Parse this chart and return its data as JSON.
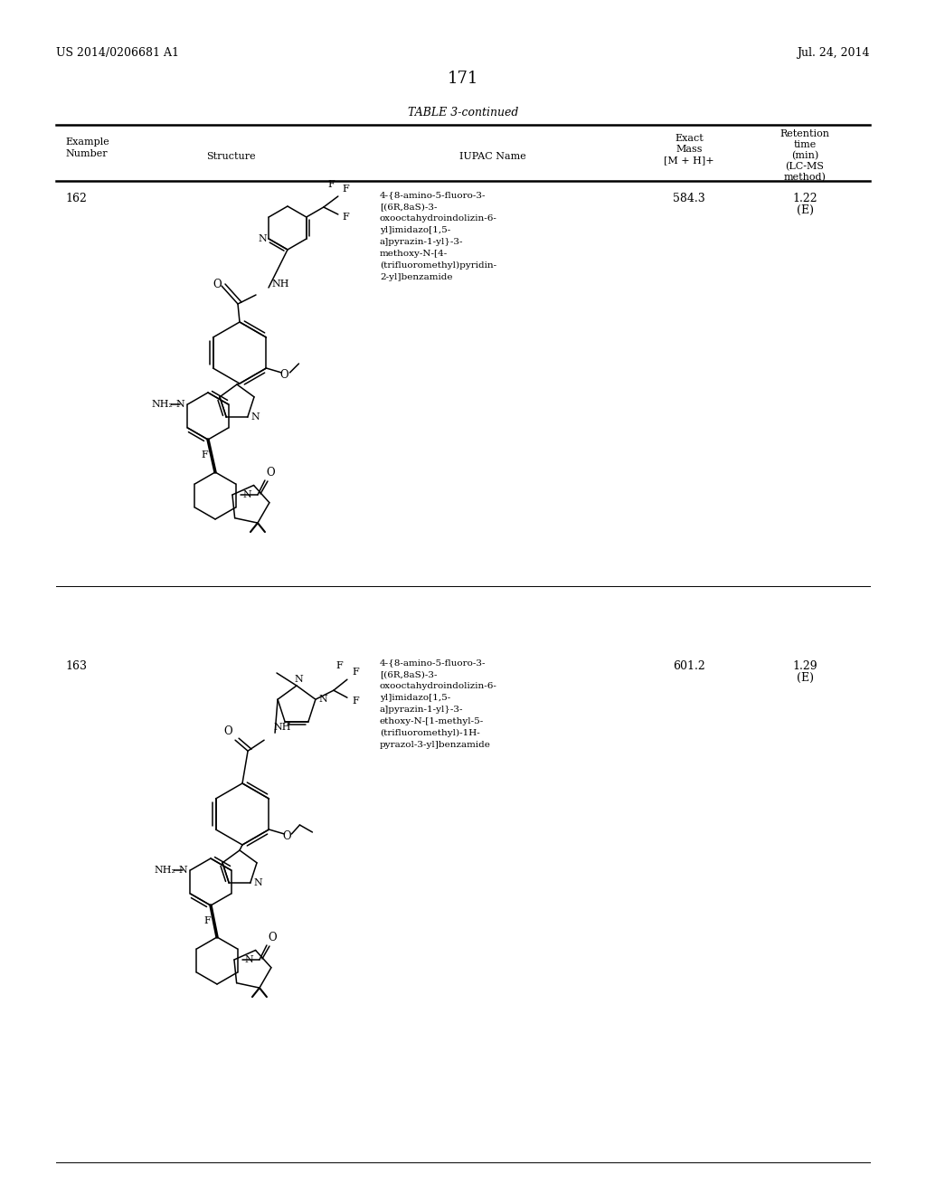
{
  "background_color": "#ffffff",
  "page_number": "171",
  "patent_number": "US 2014/0206681 A1",
  "patent_date": "Jul. 24, 2014",
  "table_title": "TABLE 3-continued",
  "row1_num": "162",
  "row1_iupac": [
    "4-{8-amino-5-fluoro-3-",
    "[(6R,8aS)-3-",
    "oxooctahydroindolizin-6-",
    "yl]imidazo[1,5-",
    "a]pyrazin-1-yl}-3-",
    "methoxy-N-[4-",
    "(trifluoromethyl)pyridin-",
    "2-yl]benzamide"
  ],
  "row1_mass": "584.3",
  "row1_ret1": "1.22",
  "row1_ret2": "(E)",
  "row2_num": "163",
  "row2_iupac": [
    "4-{8-amino-5-fluoro-3-",
    "[(6R,8aS)-3-",
    "oxooctahydroindolizin-6-",
    "yl]imidazo[1,5-",
    "a]pyrazin-1-yl}-3-",
    "ethoxy-N-[1-methyl-5-",
    "(trifluoromethyl)-1H-",
    "pyrazol-3-yl]benzamide"
  ],
  "row2_mass": "601.2",
  "row2_ret1": "1.29",
  "row2_ret2": "(E)"
}
